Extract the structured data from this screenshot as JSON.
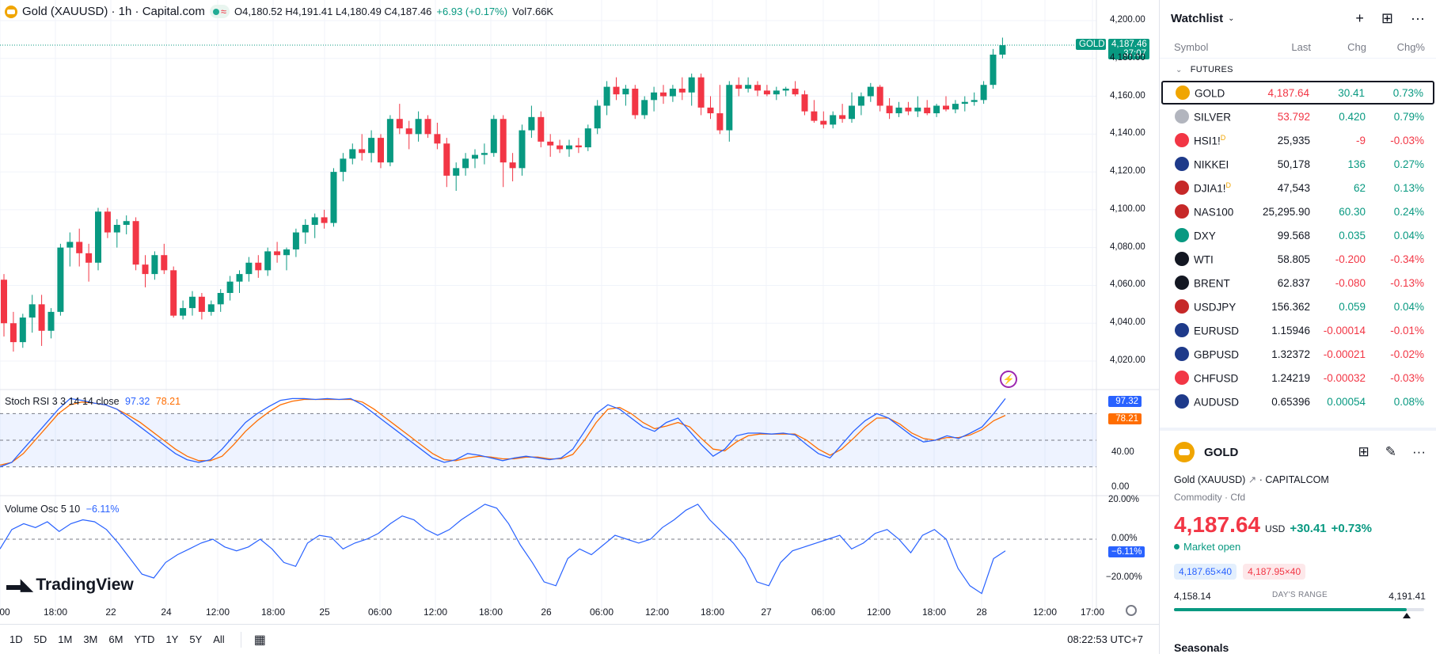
{
  "legend": {
    "title": "Gold (XAUUSD) · 1h · Capital.com",
    "ohlc": "O4,180.52 H4,191.41 L4,180.49 C4,187.46",
    "change": "+6.93 (+0.17%)",
    "volume": "Vol7.66K"
  },
  "price_badge": {
    "symbol": "GOLD",
    "price": "4,187.46",
    "countdown": "37:07"
  },
  "price_axis": [
    "4,200.00",
    "4,180.00",
    "4,160.00",
    "4,140.00",
    "4,120.00",
    "4,100.00",
    "4,080.00",
    "4,060.00",
    "4,040.00",
    "4,020.00"
  ],
  "stoch": {
    "label": "Stoch RSI 3 3 14 14 close",
    "k": "97.32",
    "d": "78.21",
    "axis": [
      "40.00",
      "0.00"
    ],
    "colors": {
      "k": "#2962ff",
      "d": "#ff6d00"
    }
  },
  "vosc": {
    "label": "Volume Osc 5 10",
    "value": "−6.11%",
    "badge": "−6.11%",
    "axis": [
      "20.00%",
      "0.00%",
      "−20.00%"
    ]
  },
  "time_axis": [
    "00",
    "18:00",
    "22",
    "24",
    "12:00",
    "18:00",
    "25",
    "06:00",
    "12:00",
    "18:00",
    "26",
    "06:00",
    "12:00",
    "18:00",
    "27",
    "06:00",
    "12:00",
    "18:00",
    "28",
    "12:00",
    "17:00"
  ],
  "timeframes": [
    "1D",
    "5D",
    "1M",
    "3M",
    "6M",
    "YTD",
    "1Y",
    "5Y",
    "All"
  ],
  "clock": "08:22:53 UTC+7",
  "logo": "TradingView",
  "watchlist": {
    "title": "Watchlist",
    "columns": {
      "symbol": "Symbol",
      "last": "Last",
      "chg": "Chg",
      "pct": "Chg%"
    },
    "section": "FUTURES",
    "rows": [
      {
        "sym": "GOLD",
        "sup": "",
        "last": "4,187.64",
        "chg": "30.41",
        "pct": "0.73%",
        "dir": "up",
        "lastdir": "dn",
        "icon": "#f0a500"
      },
      {
        "sym": "SILVER",
        "sup": "",
        "last": "53.792",
        "chg": "0.420",
        "pct": "0.79%",
        "dir": "up",
        "lastdir": "dn",
        "icon": "#b2b5be"
      },
      {
        "sym": "HSI1!",
        "sup": "D",
        "last": "25,935",
        "chg": "-9",
        "pct": "-0.03%",
        "dir": "dn",
        "lastdir": "",
        "icon": "#f23645"
      },
      {
        "sym": "NIKKEI",
        "sup": "",
        "last": "50,178",
        "chg": "136",
        "pct": "0.27%",
        "dir": "up",
        "lastdir": "",
        "icon": "#1e3a8a"
      },
      {
        "sym": "DJIA1!",
        "sup": "D",
        "last": "47,543",
        "chg": "62",
        "pct": "0.13%",
        "dir": "up",
        "lastdir": "",
        "icon": "#c62828"
      },
      {
        "sym": "NAS100",
        "sup": "",
        "last": "25,295.90",
        "chg": "60.30",
        "pct": "0.24%",
        "dir": "up",
        "lastdir": "",
        "icon": "#c62828"
      },
      {
        "sym": "DXY",
        "sup": "",
        "last": "99.568",
        "chg": "0.035",
        "pct": "0.04%",
        "dir": "up",
        "lastdir": "",
        "icon": "#089981"
      },
      {
        "sym": "WTI",
        "sup": "",
        "last": "58.805",
        "chg": "-0.200",
        "pct": "-0.34%",
        "dir": "dn",
        "lastdir": "",
        "icon": "#131722"
      },
      {
        "sym": "BRENT",
        "sup": "",
        "last": "62.837",
        "chg": "-0.080",
        "pct": "-0.13%",
        "dir": "dn",
        "lastdir": "",
        "icon": "#131722"
      },
      {
        "sym": "USDJPY",
        "sup": "",
        "last": "156.362",
        "chg": "0.059",
        "pct": "0.04%",
        "dir": "up",
        "lastdir": "",
        "icon": "#c62828"
      },
      {
        "sym": "EURUSD",
        "sup": "",
        "last": "1.15946",
        "chg": "-0.00014",
        "pct": "-0.01%",
        "dir": "dn",
        "lastdir": "",
        "icon": "#1e3a8a"
      },
      {
        "sym": "GBPUSD",
        "sup": "",
        "last": "1.32372",
        "chg": "-0.00021",
        "pct": "-0.02%",
        "dir": "dn",
        "lastdir": "",
        "icon": "#1e3a8a"
      },
      {
        "sym": "CHFUSD",
        "sup": "",
        "last": "1.24219",
        "chg": "-0.00032",
        "pct": "-0.03%",
        "dir": "dn",
        "lastdir": "",
        "icon": "#f23645"
      },
      {
        "sym": "AUDUSD",
        "sup": "",
        "last": "0.65396",
        "chg": "0.00054",
        "pct": "0.08%",
        "dir": "up",
        "lastdir": "",
        "icon": "#1e3a8a"
      }
    ]
  },
  "details": {
    "name": "GOLD",
    "full": "Gold (XAUUSD)",
    "exchange": "CAPITALCOM",
    "type": "Commodity · Cfd",
    "price": "4,187.64",
    "currency": "USD",
    "change": "+30.41",
    "pct": "+0.73%",
    "status": "Market open",
    "bid": "4,187.65×40",
    "ask": "4,187.95×40",
    "low": "4,158.14",
    "range_label": "DAY'S RANGE",
    "high": "4,191.41",
    "range_position": 0.93,
    "seasonals": "Seasonals"
  },
  "colors": {
    "up": "#089981",
    "down": "#f23645",
    "accent": "#2962ff",
    "gold": "#f0a500"
  },
  "chart_data": {
    "type": "candlestick",
    "series": [
      {
        "name": "Gold (XAUUSD)",
        "ohlc": [
          [
            4063,
            4066,
            4033,
            4040
          ],
          [
            4040,
            4046,
            4025,
            4030
          ],
          [
            4030,
            4045,
            4027,
            4043
          ],
          [
            4043,
            4055,
            4035,
            4050
          ],
          [
            4050,
            4055,
            4028,
            4036
          ],
          [
            4036,
            4048,
            4032,
            4046
          ],
          [
            4046,
            4082,
            4044,
            4080
          ],
          [
            4080,
            4088,
            4070,
            4083
          ],
          [
            4083,
            4090,
            4070,
            4077
          ],
          [
            4077,
            4082,
            4062,
            4072
          ],
          [
            4072,
            4101,
            4068,
            4099
          ],
          [
            4099,
            4101,
            4085,
            4088
          ],
          [
            4088,
            4095,
            4080,
            4092
          ],
          [
            4092,
            4097,
            4087,
            4094
          ],
          [
            4094,
            4096,
            4068,
            4071
          ],
          [
            4071,
            4076,
            4059,
            4066
          ],
          [
            4066,
            4078,
            4063,
            4076
          ],
          [
            4076,
            4082,
            4066,
            4068
          ],
          [
            4068,
            4070,
            4043,
            4044
          ],
          [
            4044,
            4052,
            4042,
            4048
          ],
          [
            4048,
            4057,
            4044,
            4054
          ],
          [
            4054,
            4056,
            4042,
            4046
          ],
          [
            4046,
            4052,
            4044,
            4050
          ],
          [
            4050,
            4058,
            4046,
            4056
          ],
          [
            4056,
            4065,
            4052,
            4062
          ],
          [
            4062,
            4068,
            4056,
            4066
          ],
          [
            4066,
            4075,
            4062,
            4072
          ],
          [
            4072,
            4076,
            4064,
            4068
          ],
          [
            4068,
            4080,
            4065,
            4078
          ],
          [
            4078,
            4083,
            4072,
            4076
          ],
          [
            4076,
            4080,
            4068,
            4079
          ],
          [
            4079,
            4090,
            4075,
            4088
          ],
          [
            4088,
            4095,
            4082,
            4092
          ],
          [
            4092,
            4098,
            4085,
            4096
          ],
          [
            4096,
            4100,
            4090,
            4093
          ],
          [
            4093,
            4122,
            4091,
            4120
          ],
          [
            4120,
            4130,
            4115,
            4127
          ],
          [
            4127,
            4135,
            4124,
            4132
          ],
          [
            4132,
            4140,
            4126,
            4130
          ],
          [
            4130,
            4142,
            4125,
            4138
          ],
          [
            4138,
            4140,
            4122,
            4125
          ],
          [
            4125,
            4150,
            4123,
            4148
          ],
          [
            4148,
            4156,
            4140,
            4143
          ],
          [
            4143,
            4147,
            4132,
            4140
          ],
          [
            4140,
            4152,
            4136,
            4148
          ],
          [
            4148,
            4150,
            4138,
            4140
          ],
          [
            4140,
            4146,
            4132,
            4135
          ],
          [
            4135,
            4138,
            4112,
            4118
          ],
          [
            4118,
            4125,
            4110,
            4122
          ],
          [
            4122,
            4130,
            4118,
            4127
          ],
          [
            4127,
            4132,
            4122,
            4129
          ],
          [
            4129,
            4135,
            4124,
            4130
          ],
          [
            4130,
            4150,
            4128,
            4148
          ],
          [
            4148,
            4150,
            4112,
            4125
          ],
          [
            4125,
            4130,
            4115,
            4122
          ],
          [
            4122,
            4145,
            4118,
            4142
          ],
          [
            4142,
            4155,
            4138,
            4149
          ],
          [
            4149,
            4152,
            4133,
            4136
          ],
          [
            4136,
            4140,
            4128,
            4134
          ],
          [
            4134,
            4137,
            4130,
            4132
          ],
          [
            4132,
            4137,
            4128,
            4134
          ],
          [
            4134,
            4138,
            4130,
            4133
          ],
          [
            4133,
            4145,
            4131,
            4143
          ],
          [
            4143,
            4158,
            4140,
            4155
          ],
          [
            4155,
            4168,
            4150,
            4165
          ],
          [
            4165,
            4170,
            4158,
            4161
          ],
          [
            4161,
            4166,
            4155,
            4164
          ],
          [
            4164,
            4166,
            4148,
            4150
          ],
          [
            4150,
            4160,
            4148,
            4158
          ],
          [
            4158,
            4165,
            4152,
            4162
          ],
          [
            4162,
            4166,
            4156,
            4160
          ],
          [
            4160,
            4166,
            4157,
            4164
          ],
          [
            4164,
            4170,
            4158,
            4162
          ],
          [
            4162,
            4172,
            4155,
            4170
          ],
          [
            4170,
            4172,
            4150,
            4154
          ],
          [
            4154,
            4160,
            4148,
            4151
          ],
          [
            4151,
            4166,
            4140,
            4142
          ],
          [
            4142,
            4168,
            4136,
            4166
          ],
          [
            4166,
            4170,
            4160,
            4164
          ],
          [
            4164,
            4170,
            4162,
            4166
          ],
          [
            4166,
            4168,
            4160,
            4163
          ],
          [
            4163,
            4166,
            4160,
            4161
          ],
          [
            4161,
            4165,
            4158,
            4163
          ],
          [
            4163,
            4165,
            4160,
            4164
          ],
          [
            4164,
            4168,
            4160,
            4161
          ],
          [
            4161,
            4163,
            4150,
            4152
          ],
          [
            4152,
            4158,
            4146,
            4147
          ],
          [
            4147,
            4152,
            4143,
            4145
          ],
          [
            4145,
            4152,
            4143,
            4150
          ],
          [
            4150,
            4156,
            4146,
            4148
          ],
          [
            4148,
            4162,
            4146,
            4155
          ],
          [
            4155,
            4162,
            4150,
            4160
          ],
          [
            4160,
            4167,
            4157,
            4165
          ],
          [
            4165,
            4166,
            4152,
            4155
          ],
          [
            4155,
            4159,
            4148,
            4151
          ],
          [
            4151,
            4157,
            4149,
            4154
          ],
          [
            4154,
            4157,
            4150,
            4152
          ],
          [
            4152,
            4160,
            4149,
            4154
          ],
          [
            4154,
            4158,
            4150,
            4151
          ],
          [
            4151,
            4156,
            4149,
            4155
          ],
          [
            4155,
            4160,
            4152,
            4153
          ],
          [
            4153,
            4158,
            4151,
            4156
          ],
          [
            4156,
            4160,
            4152,
            4157
          ],
          [
            4157,
            4162,
            4155,
            4158
          ],
          [
            4158,
            4168,
            4156,
            4166
          ],
          [
            4166,
            4185,
            4164,
            4182
          ],
          [
            4182,
            4191,
            4180,
            4187
          ]
        ]
      }
    ],
    "stoch_k": [
      20,
      25,
      40,
      55,
      70,
      85,
      97,
      95,
      92,
      90,
      85,
      75,
      65,
      55,
      45,
      35,
      28,
      25,
      28,
      40,
      55,
      70,
      80,
      88,
      95,
      97,
      97,
      96,
      97,
      96,
      97,
      90,
      80,
      70,
      60,
      50,
      40,
      30,
      25,
      28,
      35,
      33,
      30,
      27,
      30,
      32,
      30,
      28,
      30,
      40,
      60,
      80,
      90,
      85,
      75,
      65,
      60,
      70,
      75,
      60,
      45,
      32,
      40,
      55,
      58,
      58,
      57,
      58,
      56,
      45,
      35,
      30,
      45,
      60,
      72,
      80,
      75,
      65,
      55,
      48,
      50,
      55,
      52,
      58,
      65,
      80,
      97
    ],
    "stoch_d": [
      22,
      25,
      35,
      50,
      65,
      80,
      90,
      93,
      92,
      90,
      85,
      78,
      70,
      60,
      50,
      40,
      32,
      27,
      27,
      32,
      45,
      60,
      72,
      82,
      90,
      94,
      96,
      96,
      96,
      96,
      96,
      93,
      85,
      75,
      65,
      55,
      45,
      35,
      28,
      27,
      30,
      32,
      31,
      29,
      29,
      31,
      31,
      29,
      29,
      34,
      50,
      70,
      85,
      87,
      80,
      70,
      63,
      66,
      70,
      65,
      52,
      40,
      38,
      48,
      55,
      57,
      57,
      57,
      57,
      50,
      40,
      33,
      40,
      52,
      65,
      75,
      75,
      68,
      58,
      52,
      50,
      53,
      53,
      56,
      62,
      72,
      78
    ],
    "stoch_levels": [
      80,
      50,
      20
    ],
    "vosc": [
      -5,
      5,
      8,
      6,
      9,
      4,
      8,
      10,
      9,
      5,
      -2,
      -10,
      -18,
      -20,
      -12,
      -8,
      -5,
      -2,
      0,
      -4,
      -6,
      -4,
      0,
      -5,
      -12,
      -14,
      -2,
      2,
      1,
      -5,
      -2,
      0,
      3,
      8,
      12,
      10,
      5,
      2,
      5,
      10,
      14,
      18,
      16,
      8,
      -3,
      -12,
      -22,
      -24,
      -10,
      -5,
      -8,
      -3,
      2,
      0,
      -2,
      0,
      6,
      10,
      15,
      18,
      10,
      4,
      -2,
      -10,
      -22,
      -24,
      -12,
      -6,
      -4,
      -2,
      0,
      2,
      -5,
      -2,
      3,
      5,
      0,
      -7,
      2,
      5,
      0,
      -15,
      -24,
      -28,
      -10,
      -6
    ]
  }
}
